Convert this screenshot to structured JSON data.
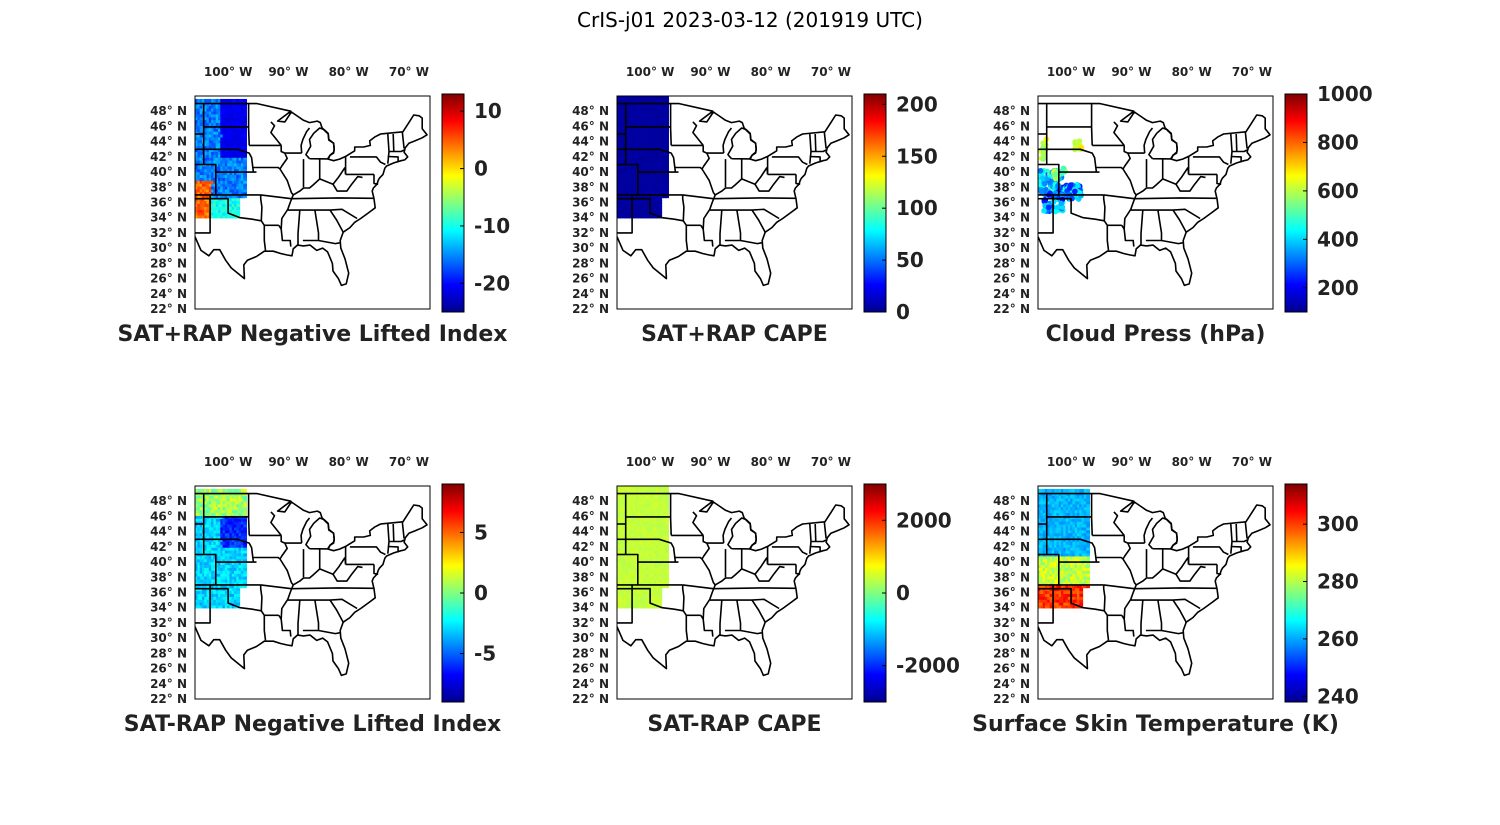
{
  "figure": {
    "title": "CrIS-j01 2023-03-12 (201919 UTC)"
  },
  "colormap": [
    "#00008f",
    "#0000ff",
    "#0080ff",
    "#00ffff",
    "#80ff80",
    "#ffff00",
    "#ff8000",
    "#ff0000",
    "#800000"
  ],
  "map": {
    "lon_labels": [
      "100",
      "90",
      "80",
      "70"
    ],
    "lon_suffix": "W",
    "lat_labels": [
      "48",
      "46",
      "44",
      "42",
      "40",
      "38",
      "36",
      "34",
      "32",
      "30",
      "28",
      "26",
      "24",
      "22"
    ],
    "lat_suffix": "N",
    "degree_symbol": "°"
  },
  "panels": [
    {
      "id": "sat-rap-negative-lifted-index",
      "title": "SAT+RAP Negative Lifted Index",
      "colorbar": {
        "min": -25,
        "max": 13,
        "ticks": [
          "10",
          "0",
          "-10",
          "-20"
        ],
        "tick_values": [
          10,
          0,
          -10,
          -20
        ]
      },
      "field": "blue-swath-orange-south"
    },
    {
      "id": "sat-rap-cape",
      "title": "SAT+RAP CAPE",
      "colorbar": {
        "min": 0,
        "max": 210,
        "ticks": [
          "200",
          "150",
          "100",
          "50",
          "0"
        ],
        "tick_values": [
          200,
          150,
          100,
          50,
          0
        ]
      },
      "field": "uniform-dark-blue"
    },
    {
      "id": "cloud-press",
      "title": "Cloud Press (hPa)",
      "colorbar": {
        "min": 100,
        "max": 1000,
        "ticks": [
          "1000",
          "800",
          "600",
          "400",
          "200"
        ],
        "tick_values": [
          1000,
          800,
          600,
          400,
          200
        ]
      },
      "field": "scattered-clouds"
    },
    {
      "id": "sat-minus-rap-negative-lifted-index",
      "title": "SAT-RAP Negative Lifted Index",
      "colorbar": {
        "min": -9,
        "max": 9,
        "ticks": [
          "5",
          "0",
          "-5"
        ],
        "tick_values": [
          5,
          0,
          -5
        ]
      },
      "field": "cyan-swath"
    },
    {
      "id": "sat-minus-rap-cape",
      "title": "SAT-RAP CAPE",
      "colorbar": {
        "min": -3000,
        "max": 3000,
        "ticks": [
          "2000",
          "0",
          "-2000"
        ],
        "tick_values": [
          2000,
          0,
          -2000
        ]
      },
      "field": "uniform-green"
    },
    {
      "id": "surface-skin-temperature",
      "title": "Surface Skin Temperature (K)",
      "colorbar": {
        "min": 238,
        "max": 314,
        "ticks": [
          "300",
          "280",
          "260",
          "240"
        ],
        "tick_values": [
          300,
          280,
          260,
          240
        ]
      },
      "field": "temperature-gradient"
    }
  ]
}
